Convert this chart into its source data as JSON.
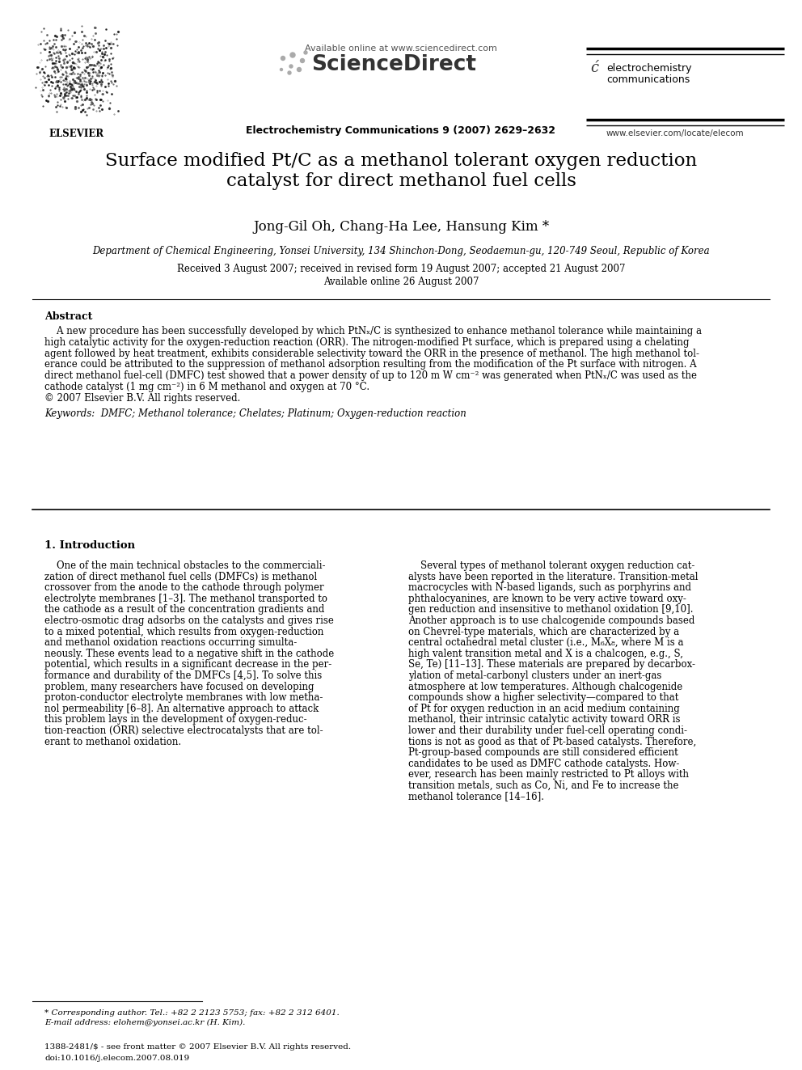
{
  "bg_color": "#ffffff",
  "header": {
    "available_online": "Available online at www.sciencedirect.com",
    "sciencedirect": "ScienceDirect",
    "journal_bold": "Electrochemistry Communications 9 (2007) 2629–2632",
    "elsevier_text": "ELSEVIER",
    "ec_line1": "electrochemistry",
    "ec_line2": "communications",
    "website": "www.elsevier.com/locate/elecom"
  },
  "title": "Surface modified Pt/C as a methanol tolerant oxygen reduction\ncatalyst for direct methanol fuel cells",
  "authors": "Jong-Gil Oh, Chang-Ha Lee, Hansung Kim *",
  "affiliation": "Department of Chemical Engineering, Yonsei University, 134 Shinchon-Dong, Seodaemun-gu, 120-749 Seoul, Republic of Korea",
  "received": "Received 3 August 2007; received in revised form 19 August 2007; accepted 21 August 2007",
  "available": "Available online 26 August 2007",
  "abstract_title": "Abstract",
  "keywords": "Keywords:  DMFC; Methanol tolerance; Chelates; Platinum; Oxygen-reduction reaction",
  "section1_title": "1. Introduction",
  "footnote1": "* Corresponding author. Tel.: +82 2 2123 5753; fax: +82 2 312 6401.",
  "footnote2": "E-mail address: elohem@yonsei.ac.kr (H. Kim).",
  "footer1": "1388-2481/$ - see front matter © 2007 Elsevier B.V. All rights reserved.",
  "footer2": "doi:10.1016/j.elecom.2007.08.019",
  "abstract_lines": [
    "    A new procedure has been successfully developed by which PtNₓ/C is synthesized to enhance methanol tolerance while maintaining a",
    "high catalytic activity for the oxygen-reduction reaction (ORR). The nitrogen-modified Pt surface, which is prepared using a chelating",
    "agent followed by heat treatment, exhibits considerable selectivity toward the ORR in the presence of methanol. The high methanol tol-",
    "erance could be attributed to the suppression of methanol adsorption resulting from the modification of the Pt surface with nitrogen. A",
    "direct methanol fuel-cell (DMFC) test showed that a power density of up to 120 m W cm⁻² was generated when PtNₓ/C was used as the",
    "cathode catalyst (1 mg cm⁻²) in 6 M methanol and oxygen at 70 °C.",
    "© 2007 Elsevier B.V. All rights reserved."
  ],
  "left_col_lines": [
    "    One of the main technical obstacles to the commerciali-",
    "zation of direct methanol fuel cells (DMFCs) is methanol",
    "crossover from the anode to the cathode through polymer",
    "electrolyte membranes [1–3]. The methanol transported to",
    "the cathode as a result of the concentration gradients and",
    "electro-osmotic drag adsorbs on the catalysts and gives rise",
    "to a mixed potential, which results from oxygen-reduction",
    "and methanol oxidation reactions occurring simulta-",
    "neously. These events lead to a negative shift in the cathode",
    "potential, which results in a significant decrease in the per-",
    "formance and durability of the DMFCs [4,5]. To solve this",
    "problem, many researchers have focused on developing",
    "proton-conductor electrolyte membranes with low metha-",
    "nol permeability [6–8]. An alternative approach to attack",
    "this problem lays in the development of oxygen-reduc-",
    "tion-reaction (ORR) selective electrocatalysts that are tol-",
    "erant to methanol oxidation."
  ],
  "right_col_lines": [
    "    Several types of methanol tolerant oxygen reduction cat-",
    "alysts have been reported in the literature. Transition-metal",
    "macrocycles with N-based ligands, such as porphyrins and",
    "phthalocyanines, are known to be very active toward oxy-",
    "gen reduction and insensitive to methanol oxidation [9,10].",
    "Another approach is to use chalcogenide compounds based",
    "on Chevrel-type materials, which are characterized by a",
    "central octahedral metal cluster (i.e., M₆X₈, where M is a",
    "high valent transition metal and X is a chalcogen, e.g., S,",
    "Se, Te) [11–13]. These materials are prepared by decarbox-",
    "ylation of metal-carbonyl clusters under an inert-gas",
    "atmosphere at low temperatures. Although chalcogenide",
    "compounds show a higher selectivity—compared to that",
    "of Pt for oxygen reduction in an acid medium containing",
    "methanol, their intrinsic catalytic activity toward ORR is",
    "lower and their durability under fuel-cell operating condi-",
    "tions is not as good as that of Pt-based catalysts. Therefore,",
    "Pt-group-based compounds are still considered efficient",
    "candidates to be used as DMFC cathode catalysts. How-",
    "ever, research has been mainly restricted to Pt alloys with",
    "transition metals, such as Co, Ni, and Fe to increase the",
    "methanol tolerance [14–16]."
  ]
}
